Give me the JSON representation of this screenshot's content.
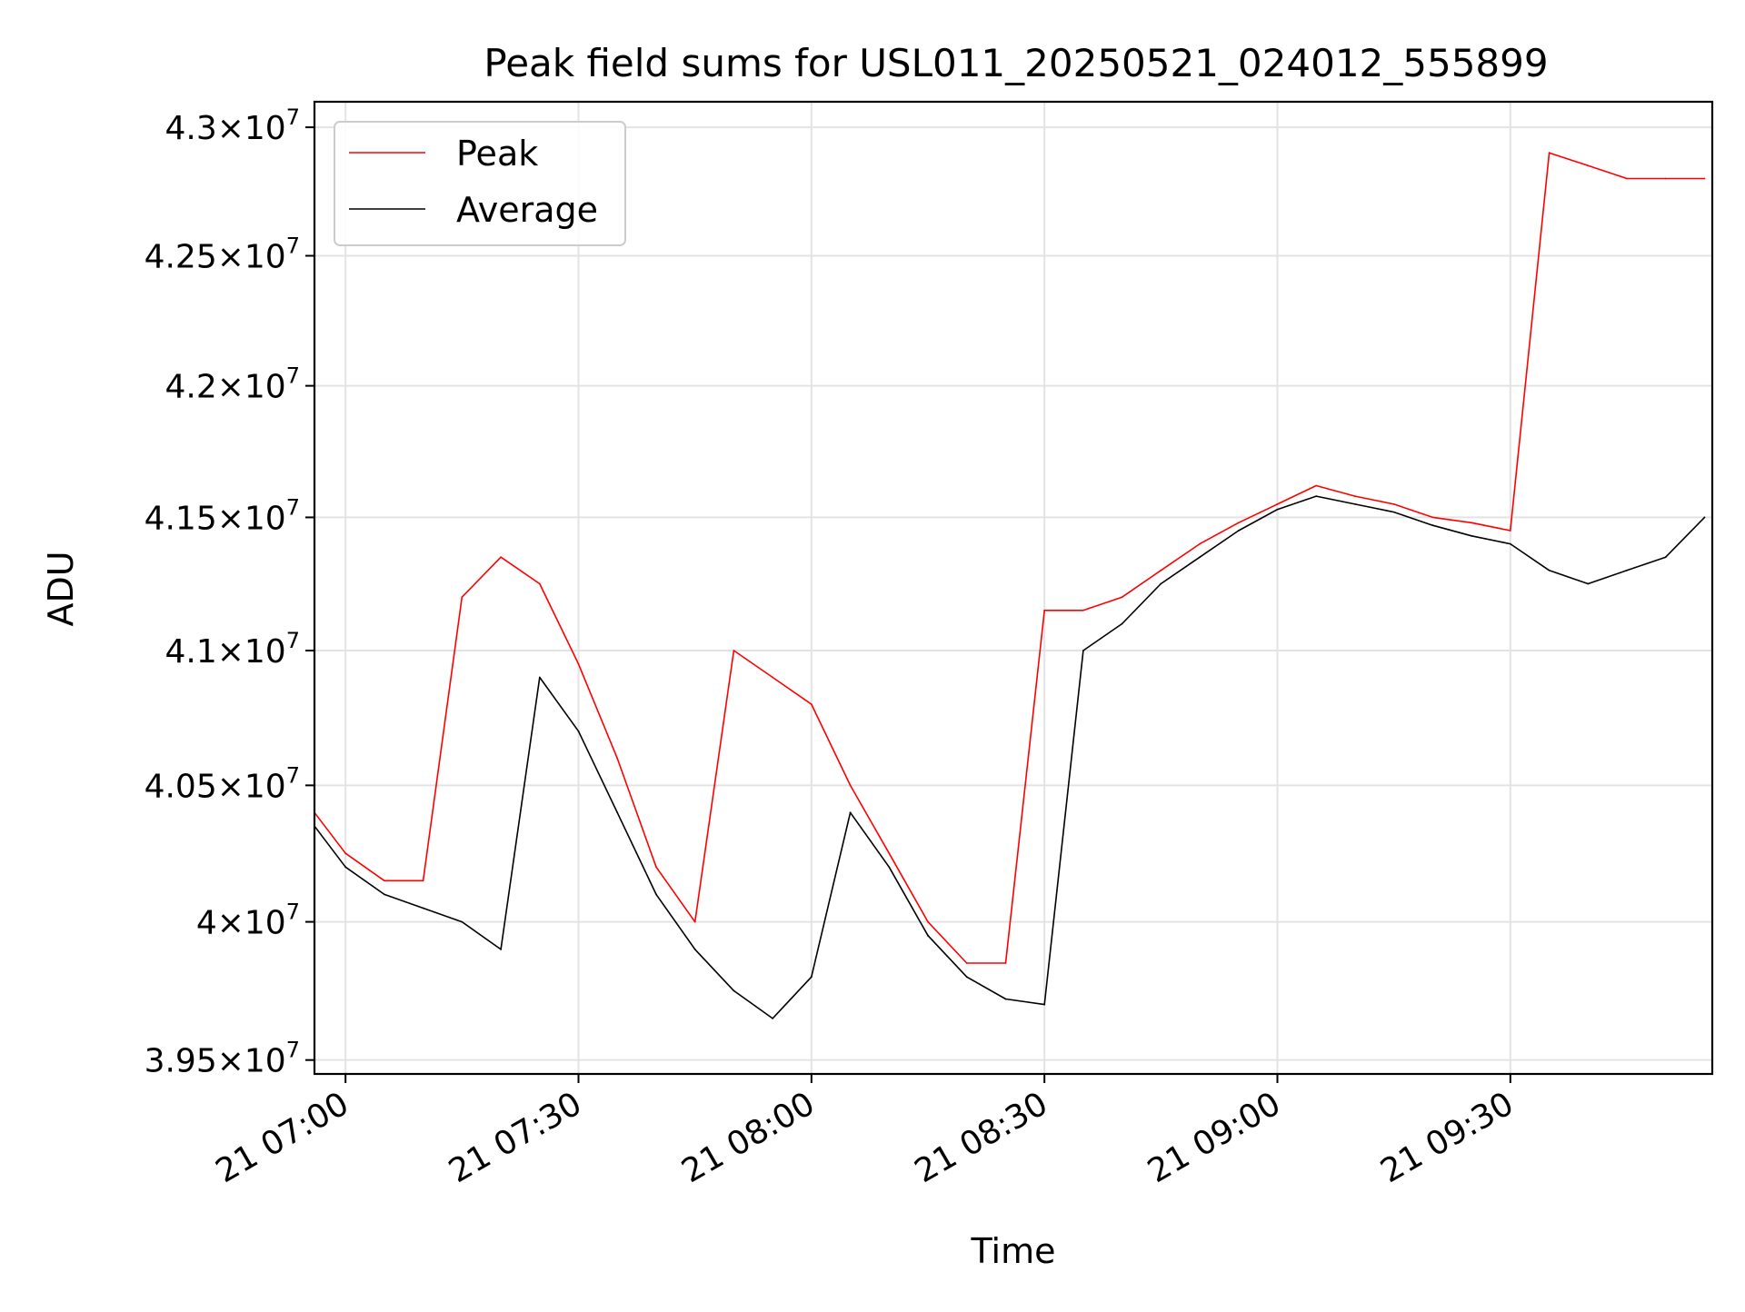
{
  "chart_data": {
    "type": "line",
    "title": "Peak field sums for USL011_20250521_024012_555899",
    "xlabel": "Time",
    "ylabel": "ADU",
    "xlim": [
      "2025-05-21T06:56",
      "2025-05-21T09:56"
    ],
    "ylim": [
      39450000,
      43100000
    ],
    "y_scale": "log",
    "grid": true,
    "legend_position": "upper left",
    "x_ticks": [
      {
        "value": "2025-05-21T07:00",
        "label": "21 07:00"
      },
      {
        "value": "2025-05-21T07:30",
        "label": "21 07:30"
      },
      {
        "value": "2025-05-21T08:00",
        "label": "21 08:00"
      },
      {
        "value": "2025-05-21T08:30",
        "label": "21 08:30"
      },
      {
        "value": "2025-05-21T09:00",
        "label": "21 09:00"
      },
      {
        "value": "2025-05-21T09:30",
        "label": "21 09:30"
      }
    ],
    "y_ticks": [
      {
        "value": 39500000,
        "mantissa": "3.95",
        "exp": "7"
      },
      {
        "value": 40000000,
        "mantissa": "4",
        "exp": "7"
      },
      {
        "value": 40500000,
        "mantissa": "4.05",
        "exp": "7"
      },
      {
        "value": 41000000,
        "mantissa": "4.1",
        "exp": "7"
      },
      {
        "value": 41500000,
        "mantissa": "4.15",
        "exp": "7"
      },
      {
        "value": 42000000,
        "mantissa": "4.2",
        "exp": "7"
      },
      {
        "value": 42500000,
        "mantissa": "4.25",
        "exp": "7"
      },
      {
        "value": 43000000,
        "mantissa": "4.3",
        "exp": "7"
      }
    ],
    "series": [
      {
        "name": "Peak",
        "color": "#ff0000",
        "x": [
          "2025-05-21T06:56",
          "2025-05-21T07:00",
          "2025-05-21T07:05",
          "2025-05-21T07:10",
          "2025-05-21T07:15",
          "2025-05-21T07:20",
          "2025-05-21T07:25",
          "2025-05-21T07:30",
          "2025-05-21T07:35",
          "2025-05-21T07:40",
          "2025-05-21T07:45",
          "2025-05-21T07:50",
          "2025-05-21T07:55",
          "2025-05-21T08:00",
          "2025-05-21T08:05",
          "2025-05-21T08:10",
          "2025-05-21T08:15",
          "2025-05-21T08:20",
          "2025-05-21T08:25",
          "2025-05-21T08:30",
          "2025-05-21T08:35",
          "2025-05-21T08:40",
          "2025-05-21T08:45",
          "2025-05-21T08:50",
          "2025-05-21T08:55",
          "2025-05-21T09:00",
          "2025-05-21T09:05",
          "2025-05-21T09:10",
          "2025-05-21T09:15",
          "2025-05-21T09:20",
          "2025-05-21T09:25",
          "2025-05-21T09:30",
          "2025-05-21T09:35",
          "2025-05-21T09:40",
          "2025-05-21T09:45",
          "2025-05-21T09:50",
          "2025-05-21T09:55"
        ],
        "y": [
          40400000,
          40250000,
          40150000,
          40150000,
          41200000,
          41350000,
          41250000,
          40950000,
          40600000,
          40200000,
          40000000,
          41000000,
          40900000,
          40800000,
          40500000,
          40250000,
          40000000,
          39850000,
          39850000,
          41150000,
          41150000,
          41200000,
          41300000,
          41400000,
          41480000,
          41550000,
          41620000,
          41580000,
          41550000,
          41500000,
          41480000,
          41450000,
          42900000,
          42850000,
          42800000,
          42800000,
          42800000
        ]
      },
      {
        "name": "Average",
        "color": "#000000",
        "x": [
          "2025-05-21T06:56",
          "2025-05-21T07:00",
          "2025-05-21T07:05",
          "2025-05-21T07:10",
          "2025-05-21T07:15",
          "2025-05-21T07:20",
          "2025-05-21T07:25",
          "2025-05-21T07:30",
          "2025-05-21T07:35",
          "2025-05-21T07:40",
          "2025-05-21T07:45",
          "2025-05-21T07:50",
          "2025-05-21T07:55",
          "2025-05-21T08:00",
          "2025-05-21T08:05",
          "2025-05-21T08:10",
          "2025-05-21T08:15",
          "2025-05-21T08:20",
          "2025-05-21T08:25",
          "2025-05-21T08:30",
          "2025-05-21T08:35",
          "2025-05-21T08:40",
          "2025-05-21T08:45",
          "2025-05-21T08:50",
          "2025-05-21T08:55",
          "2025-05-21T09:00",
          "2025-05-21T09:05",
          "2025-05-21T09:10",
          "2025-05-21T09:15",
          "2025-05-21T09:20",
          "2025-05-21T09:25",
          "2025-05-21T09:30",
          "2025-05-21T09:35",
          "2025-05-21T09:40",
          "2025-05-21T09:45",
          "2025-05-21T09:50",
          "2025-05-21T09:55"
        ],
        "y": [
          40350000,
          40200000,
          40100000,
          40050000,
          40000000,
          39900000,
          40900000,
          40700000,
          40400000,
          40100000,
          39900000,
          39750000,
          39650000,
          39800000,
          40400000,
          40200000,
          39950000,
          39800000,
          39720000,
          39700000,
          41000000,
          41100000,
          41250000,
          41350000,
          41450000,
          41530000,
          41580000,
          41550000,
          41520000,
          41470000,
          41430000,
          41400000,
          41300000,
          41250000,
          41300000,
          41350000,
          41500000
        ]
      }
    ]
  }
}
